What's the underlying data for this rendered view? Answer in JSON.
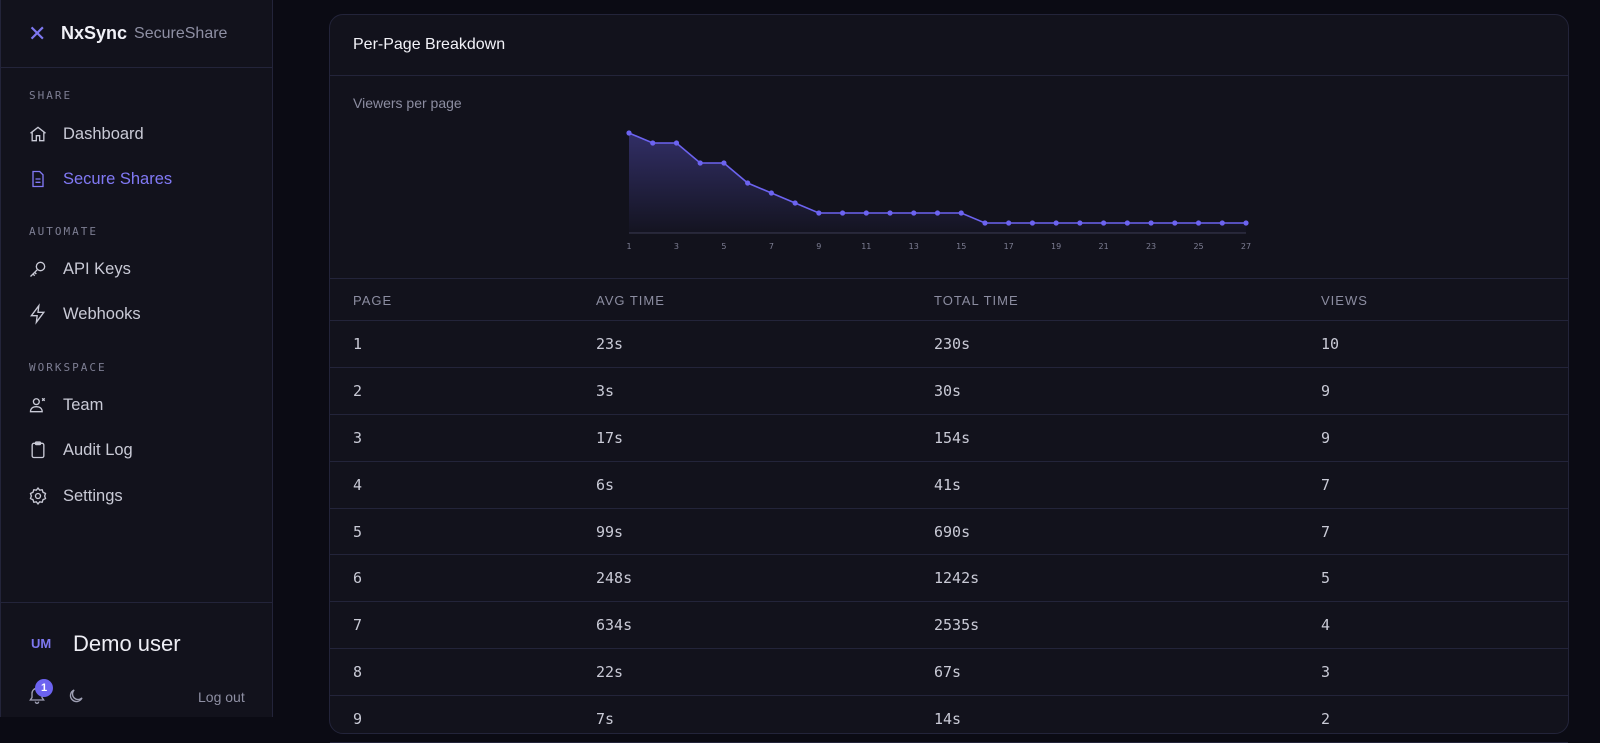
{
  "brand": {
    "name": "NxSync",
    "product": "SecureShare",
    "logo_icon": "x-logo-icon"
  },
  "sidebar": {
    "sections": [
      {
        "label": "SHARE",
        "items": [
          {
            "label": "Dashboard",
            "icon": "home-icon",
            "active": false
          },
          {
            "label": "Secure Shares",
            "icon": "document-icon",
            "active": true
          }
        ]
      },
      {
        "label": "AUTOMATE",
        "items": [
          {
            "label": "API Keys",
            "icon": "key-icon",
            "active": false
          },
          {
            "label": "Webhooks",
            "icon": "bolt-icon",
            "active": false
          }
        ]
      },
      {
        "label": "WORKSPACE",
        "items": [
          {
            "label": "Team",
            "icon": "team-icon",
            "active": false
          },
          {
            "label": "Audit Log",
            "icon": "clipboard-icon",
            "active": false
          },
          {
            "label": "Settings",
            "icon": "gear-icon",
            "active": false
          }
        ]
      }
    ]
  },
  "user": {
    "initials": "UM",
    "name": "Demo user",
    "notifications": "1",
    "logout_label": "Log out"
  },
  "card": {
    "title": "Per-Page Breakdown",
    "chart_label": "Viewers per page"
  },
  "colors": {
    "accent": "#6c63f0",
    "background": "#0b0b14",
    "panel": "#12121c"
  },
  "chart_data": {
    "type": "area",
    "x": [
      1,
      2,
      3,
      4,
      5,
      6,
      7,
      8,
      9,
      10,
      11,
      12,
      13,
      14,
      15,
      16,
      17,
      18,
      19,
      20,
      21,
      22,
      23,
      24,
      25,
      26,
      27
    ],
    "values": [
      10,
      9,
      9,
      7,
      7,
      5,
      4,
      3,
      2,
      2,
      2,
      2,
      2,
      2,
      2,
      1,
      1,
      1,
      1,
      1,
      1,
      1,
      1,
      1,
      1,
      1,
      1
    ],
    "x_tick_labels": [
      "1",
      "3",
      "5",
      "7",
      "9",
      "11",
      "13",
      "15",
      "17",
      "19",
      "21",
      "23",
      "25",
      "27"
    ],
    "ylim": [
      0,
      10
    ],
    "grid": false
  },
  "table": {
    "headers": [
      "PAGE",
      "AVG TIME",
      "TOTAL TIME",
      "VIEWS"
    ],
    "rows": [
      [
        "1",
        "23s",
        "230s",
        "10"
      ],
      [
        "2",
        "3s",
        "30s",
        "9"
      ],
      [
        "3",
        "17s",
        "154s",
        "9"
      ],
      [
        "4",
        "6s",
        "41s",
        "7"
      ],
      [
        "5",
        "99s",
        "690s",
        "7"
      ],
      [
        "6",
        "248s",
        "1242s",
        "5"
      ],
      [
        "7",
        "634s",
        "2535s",
        "4"
      ],
      [
        "8",
        "22s",
        "67s",
        "3"
      ],
      [
        "9",
        "7s",
        "14s",
        "2"
      ]
    ]
  }
}
